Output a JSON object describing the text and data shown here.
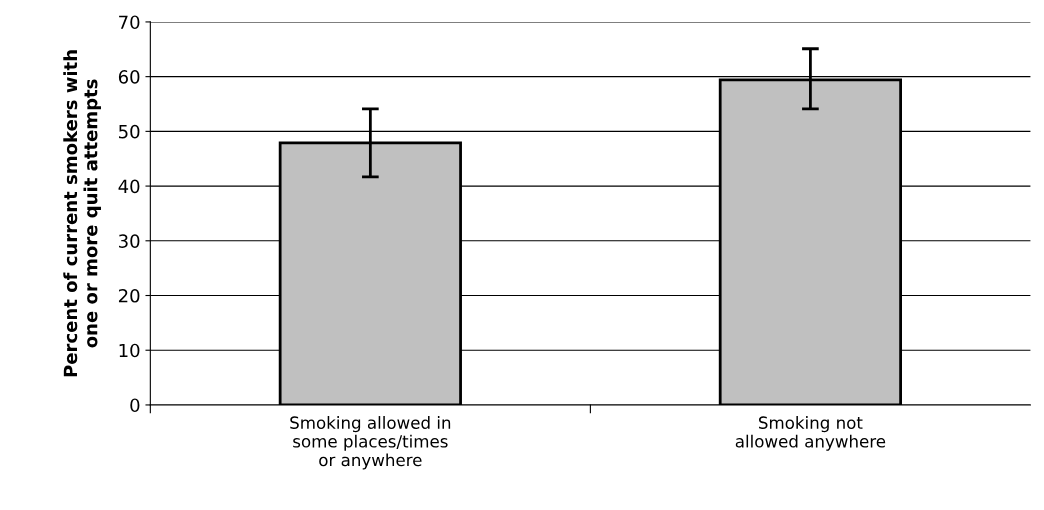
{
  "chart_data": {
    "type": "bar",
    "ylabel": "Percent of current smokers with\none or more quit attempts",
    "categories": [
      "Smoking allowed in\nsome places/times\nor anywhere",
      "Smoking not\nallowed anywhere"
    ],
    "values": [
      47.9,
      59.4
    ],
    "errors": [
      [
        41.7,
        54.1
      ],
      [
        54.1,
        65.1
      ]
    ],
    "color": "#c0c0c0",
    "ylim": [
      0,
      70
    ],
    "yticks": [
      0,
      10,
      20,
      30,
      40,
      50,
      60,
      70
    ],
    "grid": "y"
  }
}
